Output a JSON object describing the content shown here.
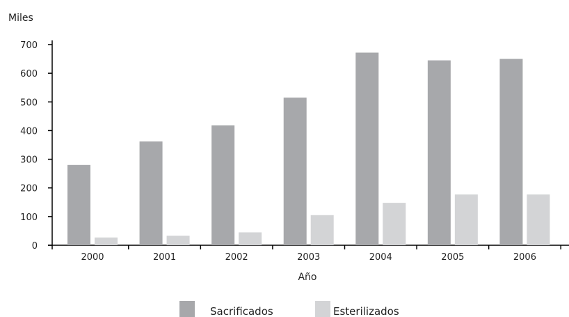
{
  "chart_data": {
    "type": "bar",
    "title": "",
    "ylabel": "Miles",
    "xlabel": "Año",
    "categories": [
      "2000",
      "2001",
      "2002",
      "2003",
      "2004",
      "2005",
      "2006"
    ],
    "series": [
      {
        "name": "Sacrificados",
        "values": [
          280,
          362,
          418,
          515,
          672,
          645,
          650
        ]
      },
      {
        "name": "Esterilizados",
        "values": [
          27,
          33,
          45,
          105,
          148,
          177,
          177
        ]
      }
    ],
    "ylim": [
      0,
      700
    ],
    "yticks": [
      "0",
      "100",
      "200",
      "300",
      "400",
      "500",
      "600",
      "700"
    ],
    "grid": false,
    "legend": "bottom-center",
    "colors": {
      "sacrificados": "#a7a8ab",
      "esterilizados": "#d3d4d6",
      "axis": "#000000"
    }
  }
}
